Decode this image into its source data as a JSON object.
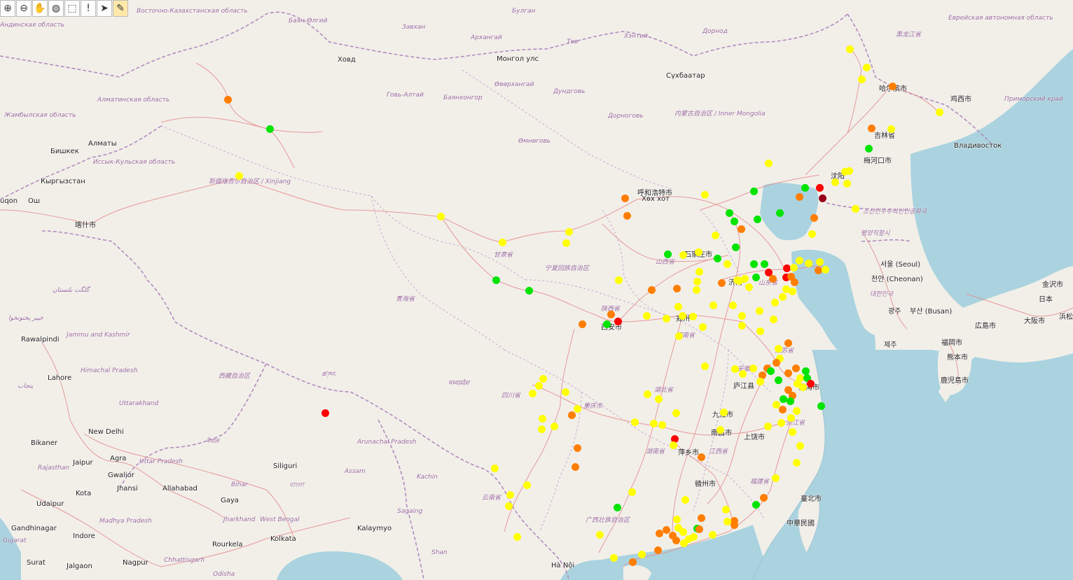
{
  "toolbar": {
    "tools": [
      {
        "name": "zoom-in-icon",
        "glyph": "⊕"
      },
      {
        "name": "zoom-out-icon",
        "glyph": "⊖"
      },
      {
        "name": "pan-hand-icon",
        "glyph": "✋"
      },
      {
        "name": "globe-icon",
        "glyph": "◍"
      },
      {
        "name": "select-area-icon",
        "glyph": "⬚"
      },
      {
        "name": "info-icon",
        "glyph": "!"
      },
      {
        "name": "pointer-icon",
        "glyph": "➤"
      },
      {
        "name": "broom-icon",
        "glyph": "✎"
      }
    ]
  },
  "colors": {
    "land": "#f2efe9",
    "sea": "#aad3df",
    "border": "#b28cbf",
    "road": "#e58a8a",
    "green": "#00e400",
    "yellow": "#ffff00",
    "orange": "#ff7e00",
    "red": "#ff0000",
    "darkred": "#99001a"
  },
  "labels": {
    "city": [
      "Алматы",
      "Бишкек",
      "Кыргызстан",
      "Ош",
      "uqon",
      "喀什市",
      "Rawalpindi",
      "Lahore",
      "New Delhi",
      "Bikaner",
      "Jaipur",
      "Agra",
      "Gwalior",
      "Jhansi",
      "Allahabad",
      "Kota",
      "Udaipur",
      "Gaya",
      "Siliguri",
      "Indore",
      "Gandhinagar",
      "Kolkata",
      "Rourkela",
      "Surat",
      "Jalgaon",
      "Nagpur",
      "Kalaymyo",
      "Hà Nội",
      "呼和浩特市",
      "Хөх хот",
      "石家庄市",
      "济南",
      "郑州",
      "庐江县",
      "上海市",
      "九江市",
      "南昌市",
      "上饶市",
      "萍乡市",
      "赣州市",
      "臺北市",
      "中華民國",
      "西安市",
      "哈尔滨市",
      "鸡西市",
      "Владивосток",
      "梅河口市",
      "沈阳",
      "吉林省",
      "서울 (Seoul)",
      "천안 (Cheonan)",
      "광주",
      "부산 (Busan)",
      "제주",
      "福岡市",
      "熊本市",
      "鹿児島市",
      "広島市",
      "大阪市",
      "金沢市",
      "日本",
      "浜松",
      "Монгол улс",
      "Ховд",
      "Сүхбаатар"
    ],
    "region": [
      "Восточно-Казахстанская область",
      "Андинская область",
      "Жамбылская область",
      "Алматинская область",
      "Иссык-Кульская область",
      "新疆维吾尔自治区 / Xinjiang",
      "青海省",
      "甘肃省",
      "宁夏回族自治区",
      "西藏自治区",
      "四川省",
      "云南省",
      "广西壮族自治区",
      "湖南省",
      "湖北省",
      "江西省",
      "浙江省",
      "江苏省",
      "安徽省",
      "山西省",
      "山东省",
      "陕西省",
      "河南省",
      "重庆市",
      "福建省",
      "内蒙古自治区 / Inner Mongolia",
      "Баян-Өлгий",
      "Завхан",
      "Архангай",
      "Булган",
      "Төв",
      "Хэнтий",
      "Дорнод",
      "Говь-Алтай",
      "Баянхонгор",
      "Өвөрхангай",
      "Дундговь",
      "Дорноговь",
      "Өмнөговь",
      "Jammu and Kashmir",
      "Himachal Pradesh",
      "Uttarakhand",
      "Uttar Pradesh",
      "Rajasthan",
      "Madhya Pradesh",
      "Bihar",
      "Jharkhand",
      "West Bengal",
      "Assam",
      "Arunachal Pradesh",
      "Odisha",
      "Chhattisgarh",
      "Gujarat",
      "Shan",
      "Kachin",
      "Sagaing",
      "Еврейская автономная область",
      "黑龙江省",
      "Приморский край",
      "조선민주주의인민공화국",
      "평양직할시",
      "대한민국",
      "گلگت بلتستان",
      "خیبر پختونخوا",
      "پنجاب",
      "नेपाल",
      "বাংলা",
      "ཚ་ཁང",
      "मध्यप्रदेश"
    ]
  }
}
